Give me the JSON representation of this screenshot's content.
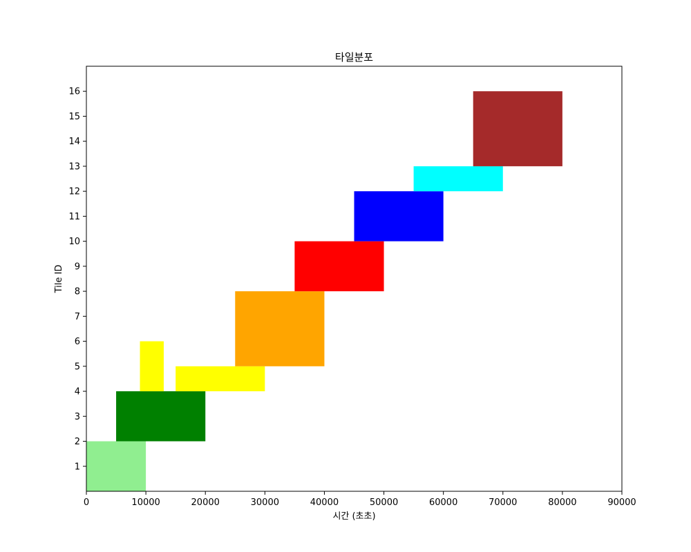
{
  "chart_data": {
    "type": "bar",
    "title": "타일분포",
    "xlabel": "시간 (초초)",
    "ylabel": "Tile ID",
    "xlim": [
      0,
      90000
    ],
    "ylim": [
      0,
      17
    ],
    "xticks": [
      0,
      10000,
      20000,
      30000,
      40000,
      50000,
      60000,
      70000,
      80000,
      90000
    ],
    "yticks": [
      1,
      2,
      3,
      4,
      5,
      6,
      7,
      8,
      9,
      10,
      11,
      12,
      13,
      14,
      15,
      16
    ],
    "grid": false,
    "bars": [
      {
        "x_start": 0,
        "x_end": 10000,
        "y_start": 0,
        "y_end": 2,
        "color": "#90ee90"
      },
      {
        "x_start": 5000,
        "x_end": 20000,
        "y_start": 2,
        "y_end": 4,
        "color": "#008000"
      },
      {
        "x_start": 9000,
        "x_end": 13000,
        "y_start": 4,
        "y_end": 6,
        "color": "#ffff00"
      },
      {
        "x_start": 15000,
        "x_end": 30000,
        "y_start": 4,
        "y_end": 5,
        "color": "#ffff00"
      },
      {
        "x_start": 25000,
        "x_end": 40000,
        "y_start": 5,
        "y_end": 8,
        "color": "#ffa500"
      },
      {
        "x_start": 35000,
        "x_end": 50000,
        "y_start": 8,
        "y_end": 10,
        "color": "#ff0000"
      },
      {
        "x_start": 45000,
        "x_end": 60000,
        "y_start": 10,
        "y_end": 12,
        "color": "#0000ff"
      },
      {
        "x_start": 55000,
        "x_end": 70000,
        "y_start": 12,
        "y_end": 13,
        "color": "#00ffff"
      },
      {
        "x_start": 65000,
        "x_end": 80000,
        "y_start": 13,
        "y_end": 16,
        "color": "#a52a2a"
      }
    ]
  }
}
